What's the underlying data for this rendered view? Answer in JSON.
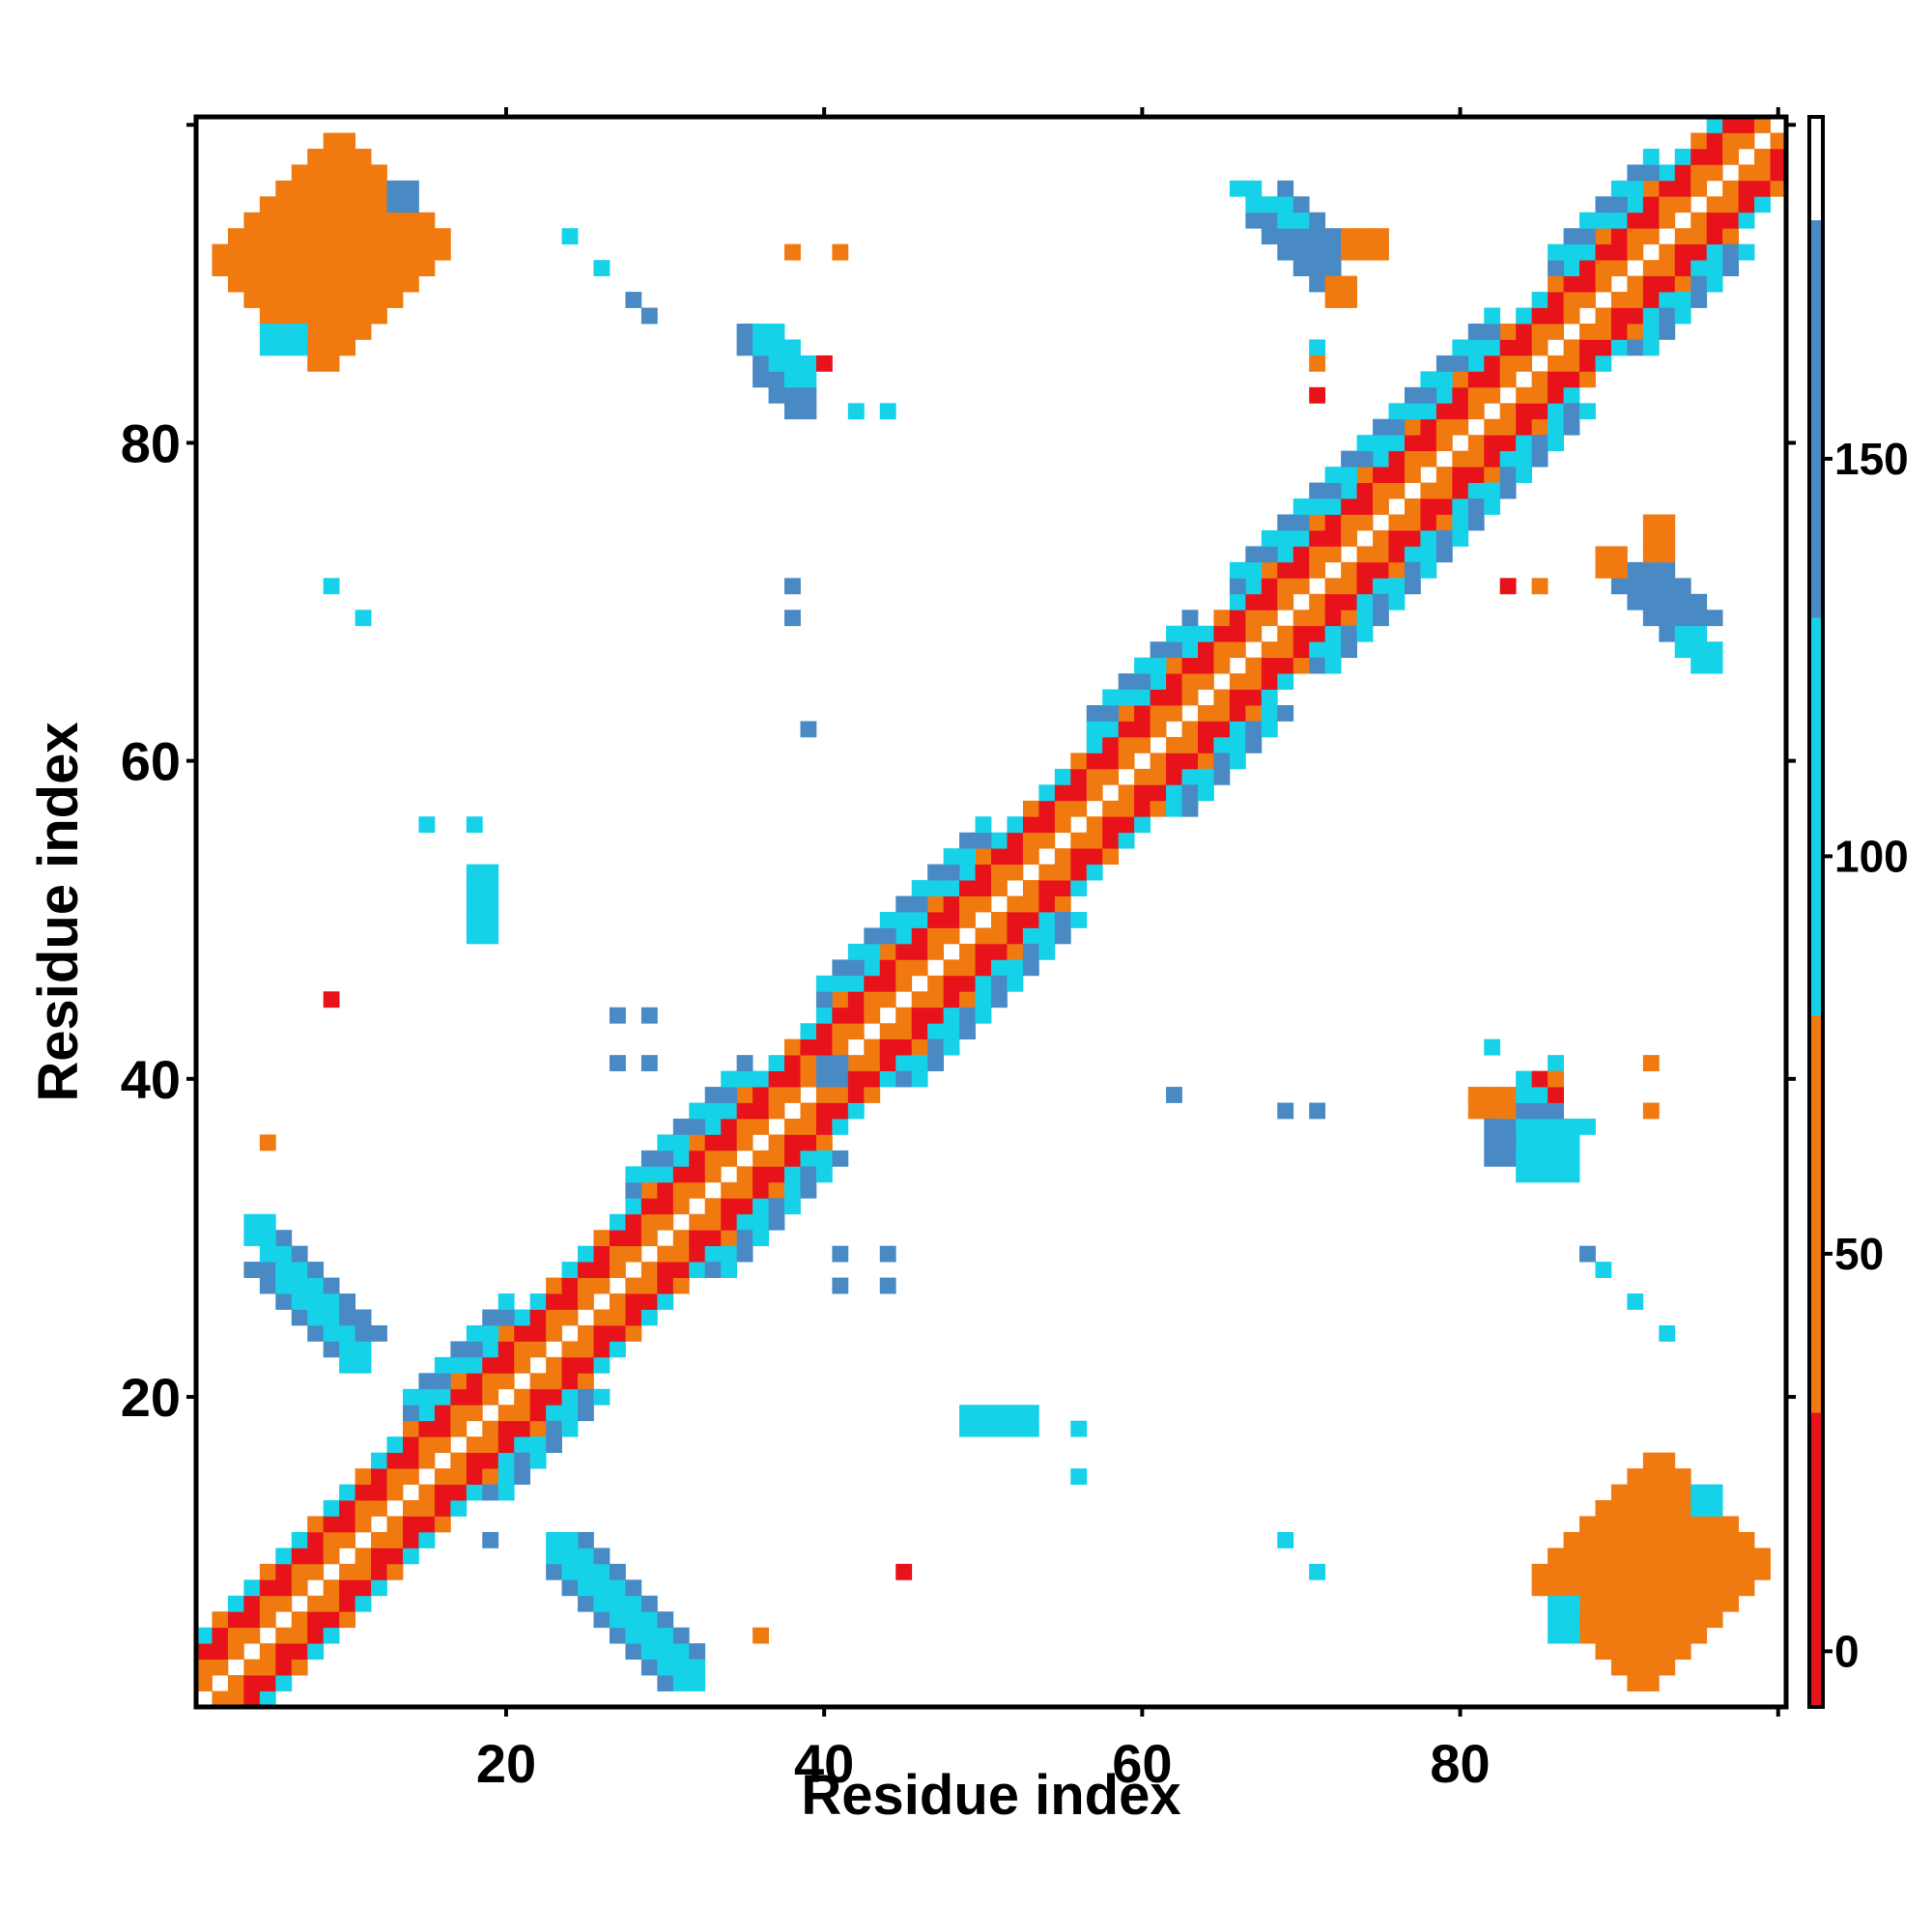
{
  "chart_data": {
    "type": "heatmap",
    "title": "",
    "xlabel": "Residue index",
    "ylabel": "Residue index",
    "xlim": [
      1,
      100
    ],
    "ylim": [
      1,
      100
    ],
    "x_ticks": [
      20,
      40,
      60,
      80
    ],
    "y_ticks": [
      20,
      40,
      60,
      80
    ],
    "grid": false,
    "colorbar": {
      "ticks": [
        0,
        50,
        100,
        150
      ],
      "range": [
        -7,
        193
      ],
      "segments": [
        {
          "from": -7,
          "to": 30,
          "color": "#e8121a"
        },
        {
          "from": 30,
          "to": 80,
          "color": "#f07a10"
        },
        {
          "from": 80,
          "to": 130,
          "color": "#16d2e8"
        },
        {
          "from": 130,
          "to": 180,
          "color": "#4a8ac4"
        },
        {
          "from": 180,
          "to": 193,
          "color": "#ffffff"
        }
      ]
    },
    "diagonal_width": 4,
    "cell_groups": [
      {
        "color": "#e8121a",
        "shape": "band",
        "start": [
          7,
          91
        ],
        "end": [
          11,
          87
        ],
        "half_width": 2.5,
        "half_depth": 1.2
      },
      {
        "color": "#e8121a",
        "shape": "band",
        "start": [
          91,
          7
        ],
        "end": [
          87,
          11
        ],
        "half_width": 2.5,
        "half_depth": 1.2
      },
      {
        "color": "#f07a10",
        "shape": "band",
        "start": [
          5,
          88
        ],
        "end": [
          13,
          96
        ],
        "half_width": 5.0,
        "half_depth": 0.8
      },
      {
        "color": "#f07a10",
        "shape": "band",
        "start": [
          88,
          5
        ],
        "end": [
          96,
          13
        ],
        "half_width": 5.0,
        "half_depth": 0.8
      },
      {
        "color": "#16d2e8",
        "shape": "rect",
        "x": [
          5,
          7
        ],
        "y": [
          86,
          87
        ]
      },
      {
        "color": "#16d2e8",
        "shape": "rect",
        "x": [
          86,
          87
        ],
        "y": [
          5,
          7
        ]
      },
      {
        "color": "#4a8ac4",
        "shape": "rect",
        "x": [
          13,
          14
        ],
        "y": [
          95,
          96
        ]
      },
      {
        "color": "#16d2e8",
        "shape": "rect",
        "x": [
          95,
          96
        ],
        "y": [
          13,
          14
        ]
      },
      {
        "color": "#4a8ac4",
        "shape": "band",
        "start": [
          5,
          29
        ],
        "end": [
          11,
          23
        ],
        "half_width": 1.6,
        "half_depth": 0.4
      },
      {
        "color": "#16d2e8",
        "shape": "band",
        "start": [
          4,
          31
        ],
        "end": [
          11,
          22
        ],
        "half_width": 0.9,
        "half_depth": 0.3
      },
      {
        "color": "#4a8ac4",
        "shape": "band",
        "start": [
          24,
          10
        ],
        "end": [
          31,
          3
        ],
        "half_width": 1.6,
        "half_depth": 0.4
      },
      {
        "color": "#16d2e8",
        "shape": "band",
        "start": [
          23,
          11
        ],
        "end": [
          32,
          2
        ],
        "half_width": 0.9,
        "half_depth": 0.3
      },
      {
        "color": "#4a8ac4",
        "shape": "band",
        "start": [
          35,
          87
        ],
        "end": [
          39,
          82
        ],
        "half_width": 1.2,
        "half_depth": 0.4
      },
      {
        "color": "#16d2e8",
        "shape": "band",
        "start": [
          36,
          87
        ],
        "end": [
          39,
          84
        ],
        "half_width": 1.4,
        "half_depth": 0.3
      },
      {
        "color": "#4a8ac4",
        "shape": "band",
        "start": [
          82,
          39
        ],
        "end": [
          87,
          35
        ],
        "half_width": 1.2,
        "half_depth": 0.4
      },
      {
        "color": "#16d2e8",
        "shape": "band",
        "start": [
          83,
          39
        ],
        "end": [
          87,
          36
        ],
        "half_width": 1.4,
        "half_depth": 0.3
      },
      {
        "color": "#4a8ac4",
        "shape": "band",
        "start": [
          68,
          95
        ],
        "end": [
          72,
          91
        ],
        "half_width": 1.5,
        "half_depth": 0.4
      },
      {
        "color": "#16d2e8",
        "shape": "band",
        "start": [
          66,
          96
        ],
        "end": [
          70,
          94
        ],
        "half_width": 0.8,
        "half_depth": 0.3
      },
      {
        "color": "#f07a10",
        "shape": "rect",
        "x": [
          73,
          75
        ],
        "y": [
          92,
          93
        ]
      },
      {
        "color": "#f07a10",
        "shape": "rect",
        "x": [
          72,
          73
        ],
        "y": [
          89,
          90
        ]
      },
      {
        "color": "#4a8ac4",
        "shape": "band",
        "start": [
          91,
          72
        ],
        "end": [
          95,
          68
        ],
        "half_width": 1.5,
        "half_depth": 0.4
      },
      {
        "color": "#16d2e8",
        "shape": "band",
        "start": [
          94,
          68
        ],
        "end": [
          96,
          66
        ],
        "half_width": 0.8,
        "half_depth": 0.3
      },
      {
        "color": "#f07a10",
        "shape": "rect",
        "x": [
          92,
          93
        ],
        "y": [
          73,
          75
        ]
      },
      {
        "color": "#f07a10",
        "shape": "rect",
        "x": [
          89,
          90
        ],
        "y": [
          72,
          73
        ]
      },
      {
        "color": "#4a8ac4",
        "shape": "rect",
        "x": [
          82,
          86
        ],
        "y": [
          35,
          38
        ]
      },
      {
        "color": "#16d2e8",
        "shape": "rect",
        "x": [
          84,
          87
        ],
        "y": [
          34,
          37
        ]
      },
      {
        "color": "#f07a10",
        "shape": "rect",
        "x": [
          81,
          83
        ],
        "y": [
          38,
          39
        ]
      },
      {
        "color": "#16d2e8",
        "shape": "rect",
        "x": [
          49,
          53
        ],
        "y": [
          18,
          19
        ]
      },
      {
        "color": "#16d2e8",
        "shape": "rect",
        "x": [
          18,
          19
        ],
        "y": [
          49,
          53
        ]
      },
      {
        "color": "#4a8ac4",
        "shape": "rect",
        "x": [
          40,
          41
        ],
        "y": [
          40,
          41
        ]
      },
      {
        "color": "#16d2e8",
        "shape": "cells",
        "points": [
          [
            24,
            93
          ],
          [
            26,
            91
          ],
          [
            71,
            86
          ],
          [
            44,
            82
          ],
          [
            42,
            82
          ],
          [
            9,
            71
          ],
          [
            11,
            69
          ],
          [
            15,
            56
          ],
          [
            18,
            56
          ],
          [
            82,
            42
          ],
          [
            86,
            41
          ],
          [
            56,
            18
          ],
          [
            56,
            15
          ],
          [
            69,
            11
          ],
          [
            71,
            9
          ],
          [
            91,
            26
          ],
          [
            93,
            24
          ],
          [
            89,
            28
          ]
        ]
      },
      {
        "color": "#4a8ac4",
        "shape": "cells",
        "points": [
          [
            28,
            89
          ],
          [
            29,
            88
          ],
          [
            38,
            71
          ],
          [
            38,
            69
          ],
          [
            39,
            62
          ],
          [
            27,
            44
          ],
          [
            29,
            44
          ],
          [
            27,
            41
          ],
          [
            29,
            41
          ],
          [
            41,
            29
          ],
          [
            44,
            29
          ],
          [
            41,
            27
          ],
          [
            44,
            27
          ],
          [
            62,
            39
          ],
          [
            69,
            38
          ],
          [
            71,
            38
          ],
          [
            88,
            29
          ],
          [
            19,
            11
          ]
        ]
      },
      {
        "color": "#e8121a",
        "shape": "cells",
        "points": [
          [
            40,
            85
          ],
          [
            71,
            83
          ],
          [
            9,
            45
          ],
          [
            45,
            9
          ],
          [
            85,
            40
          ],
          [
            83,
            71
          ],
          [
            86,
            39
          ]
        ]
      },
      {
        "color": "#f07a10",
        "shape": "cells",
        "points": [
          [
            38,
            92
          ],
          [
            41,
            92
          ],
          [
            71,
            85
          ],
          [
            5,
            36
          ],
          [
            36,
            5
          ],
          [
            85,
            71
          ],
          [
            92,
            41
          ],
          [
            92,
            38
          ],
          [
            86,
            40
          ]
        ]
      }
    ]
  }
}
